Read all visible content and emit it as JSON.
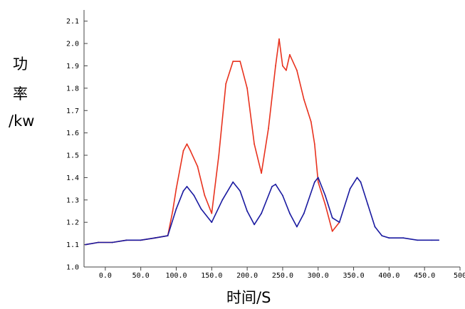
{
  "chart_data": {
    "type": "line",
    "xlabel": "时间/S",
    "ylabel_lines": [
      "功",
      "率",
      "/kw"
    ],
    "xlim": [
      -30,
      500
    ],
    "ylim": [
      1.0,
      2.15
    ],
    "x_ticks": [
      "0.0",
      "50.0",
      "100.0",
      "150.0",
      "200.0",
      "250.0",
      "300.0",
      "350.0",
      "400.0",
      "450.0",
      "500"
    ],
    "y_ticks": [
      "1.0",
      "1.1",
      "1.2",
      "1.3",
      "1.4",
      "1.5",
      "1.6",
      "1.7",
      "1.8",
      "1.9",
      "2.0",
      "2.1"
    ],
    "grid": false,
    "series": [
      {
        "color": "#e8321e",
        "x": [
          -28,
          -10,
          10,
          30,
          50,
          70,
          88,
          95,
          100,
          110,
          115,
          120,
          130,
          140,
          150,
          160,
          170,
          180,
          190,
          200,
          210,
          220,
          230,
          240,
          245,
          250,
          255,
          260,
          270,
          280,
          285,
          290,
          295,
          300,
          310,
          320,
          330
        ],
        "y": [
          1.1,
          1.11,
          1.11,
          1.12,
          1.12,
          1.13,
          1.14,
          1.25,
          1.35,
          1.52,
          1.55,
          1.52,
          1.45,
          1.32,
          1.24,
          1.5,
          1.82,
          1.92,
          1.92,
          1.8,
          1.55,
          1.42,
          1.62,
          1.9,
          2.02,
          1.9,
          1.88,
          1.95,
          1.88,
          1.75,
          1.7,
          1.65,
          1.55,
          1.38,
          1.28,
          1.16,
          1.2
        ]
      },
      {
        "color": "#1a1aa0",
        "x": [
          -28,
          -10,
          10,
          30,
          50,
          70,
          88,
          100,
          110,
          115,
          125,
          135,
          150,
          165,
          180,
          190,
          200,
          210,
          220,
          235,
          240,
          250,
          260,
          270,
          280,
          295,
          300,
          310,
          320,
          330,
          345,
          355,
          360,
          370,
          380,
          390,
          400,
          420,
          440,
          460,
          470
        ],
        "y": [
          1.1,
          1.11,
          1.11,
          1.12,
          1.12,
          1.13,
          1.14,
          1.26,
          1.34,
          1.36,
          1.32,
          1.26,
          1.2,
          1.3,
          1.38,
          1.34,
          1.25,
          1.19,
          1.24,
          1.36,
          1.37,
          1.32,
          1.24,
          1.18,
          1.24,
          1.38,
          1.4,
          1.32,
          1.22,
          1.2,
          1.35,
          1.4,
          1.38,
          1.28,
          1.18,
          1.14,
          1.13,
          1.13,
          1.12,
          1.12,
          1.12
        ]
      }
    ]
  }
}
